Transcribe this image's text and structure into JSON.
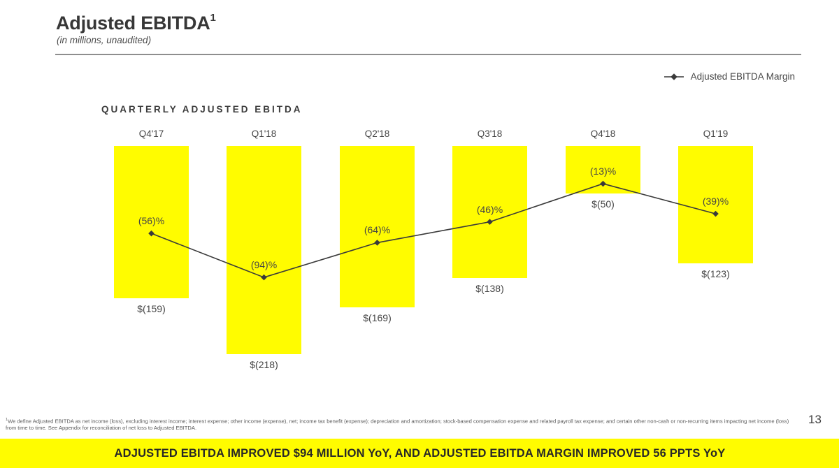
{
  "header": {
    "title": "Adjusted EBITDA",
    "title_superscript": "1",
    "subtitle": "(in millions, unaudited)"
  },
  "legend": {
    "label": "Adjusted EBITDA Margin"
  },
  "chart_data": {
    "type": "bar",
    "title": "QUARTERLY ADJUSTED EBITDA",
    "categories": [
      "Q4'17",
      "Q1'18",
      "Q2'18",
      "Q3'18",
      "Q4'18",
      "Q1'19"
    ],
    "series": [
      {
        "name": "Quarterly Adjusted EBITDA ($ millions)",
        "type": "bar",
        "color": "#FFFC00",
        "values": [
          -159,
          -218,
          -169,
          -138,
          -50,
          -123
        ],
        "labels": [
          "$(159)",
          "$(218)",
          "$(169)",
          "$(138)",
          "$(50)",
          "$(123)"
        ]
      },
      {
        "name": "Adjusted EBITDA Margin",
        "type": "line",
        "color": "#3a3a3a",
        "values": [
          -56,
          -94,
          -64,
          -46,
          -13,
          -39
        ],
        "labels": [
          "(56)%",
          "(94)%",
          "(64)%",
          "(46)%",
          "(13)%",
          "(39)%"
        ]
      }
    ],
    "xlabel": "",
    "ylabel": "",
    "grid": false,
    "legend_position": "top-right",
    "bars_drawn_downward_from_common_baseline": true
  },
  "footnote": {
    "superscript": "1",
    "text": "We define Adjusted EBITDA as net income (loss), excluding interest income; interest expense; other income (expense), net; income tax benefit (expense); depreciation and amortization; stock-based compensation expense and related payroll tax expense; and certain other non-cash or non-recurring items impacting net income (loss) from time to time. See Appendix for reconciliation of net loss to Adjusted EBITDA."
  },
  "page_number": "13",
  "banner": {
    "text": "ADJUSTED EBITDA IMPROVED $94 MILLION YoY, AND ADJUSTED EBITDA MARGIN IMPROVED 56 PPTS YoY",
    "background": "#FFFC00"
  },
  "colors": {
    "accent_yellow": "#FFFC00",
    "line": "#3a3a3a",
    "text_dark": "#3b3b3b"
  }
}
